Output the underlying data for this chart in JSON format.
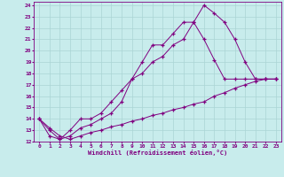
{
  "background_color": "#c8ecec",
  "grid_color": "#aad4d4",
  "line_color": "#800080",
  "xlabel": "Windchill (Refroidissement éolien,°C)",
  "line1_x": [
    0,
    1,
    2,
    3,
    4,
    5,
    6,
    7,
    8,
    9,
    10,
    11,
    12,
    13,
    14,
    15,
    16,
    17,
    18,
    19,
    20,
    21,
    22,
    23
  ],
  "line1_y": [
    14.0,
    13.0,
    12.2,
    12.5,
    13.2,
    13.5,
    14.0,
    14.5,
    15.5,
    17.5,
    19.0,
    20.5,
    20.5,
    21.5,
    22.5,
    22.5,
    24.0,
    23.3,
    22.5,
    21.0,
    19.0,
    17.5,
    17.5,
    17.5
  ],
  "line2_x": [
    0,
    1,
    2,
    3,
    4,
    5,
    6,
    7,
    8,
    9,
    10,
    11,
    12,
    13,
    14,
    15,
    16,
    17,
    18,
    19,
    20,
    21,
    22,
    23
  ],
  "line2_y": [
    14.0,
    12.5,
    12.2,
    13.0,
    14.0,
    14.0,
    14.5,
    15.5,
    16.5,
    17.5,
    18.0,
    19.0,
    19.5,
    20.5,
    21.0,
    22.5,
    21.0,
    19.2,
    17.5,
    17.5,
    17.5,
    17.5,
    17.5,
    17.5
  ],
  "line3_x": [
    0,
    1,
    2,
    3,
    4,
    5,
    6,
    7,
    8,
    9,
    10,
    11,
    12,
    13,
    14,
    15,
    16,
    17,
    18,
    19,
    20,
    21,
    22,
    23
  ],
  "line3_y": [
    14.0,
    13.2,
    12.5,
    12.2,
    12.5,
    12.8,
    13.0,
    13.3,
    13.5,
    13.8,
    14.0,
    14.3,
    14.5,
    14.8,
    15.0,
    15.3,
    15.5,
    16.0,
    16.3,
    16.7,
    17.0,
    17.3,
    17.5,
    17.5
  ],
  "xlim": [
    -0.5,
    23.5
  ],
  "ylim": [
    12,
    24.3
  ],
  "xticks": [
    0,
    1,
    2,
    3,
    4,
    5,
    6,
    7,
    8,
    9,
    10,
    11,
    12,
    13,
    14,
    15,
    16,
    17,
    18,
    19,
    20,
    21,
    22,
    23
  ],
  "yticks": [
    12,
    13,
    14,
    15,
    16,
    17,
    18,
    19,
    20,
    21,
    22,
    23,
    24
  ],
  "xlabel_fontsize": 5.0,
  "tick_fontsize": 4.5
}
